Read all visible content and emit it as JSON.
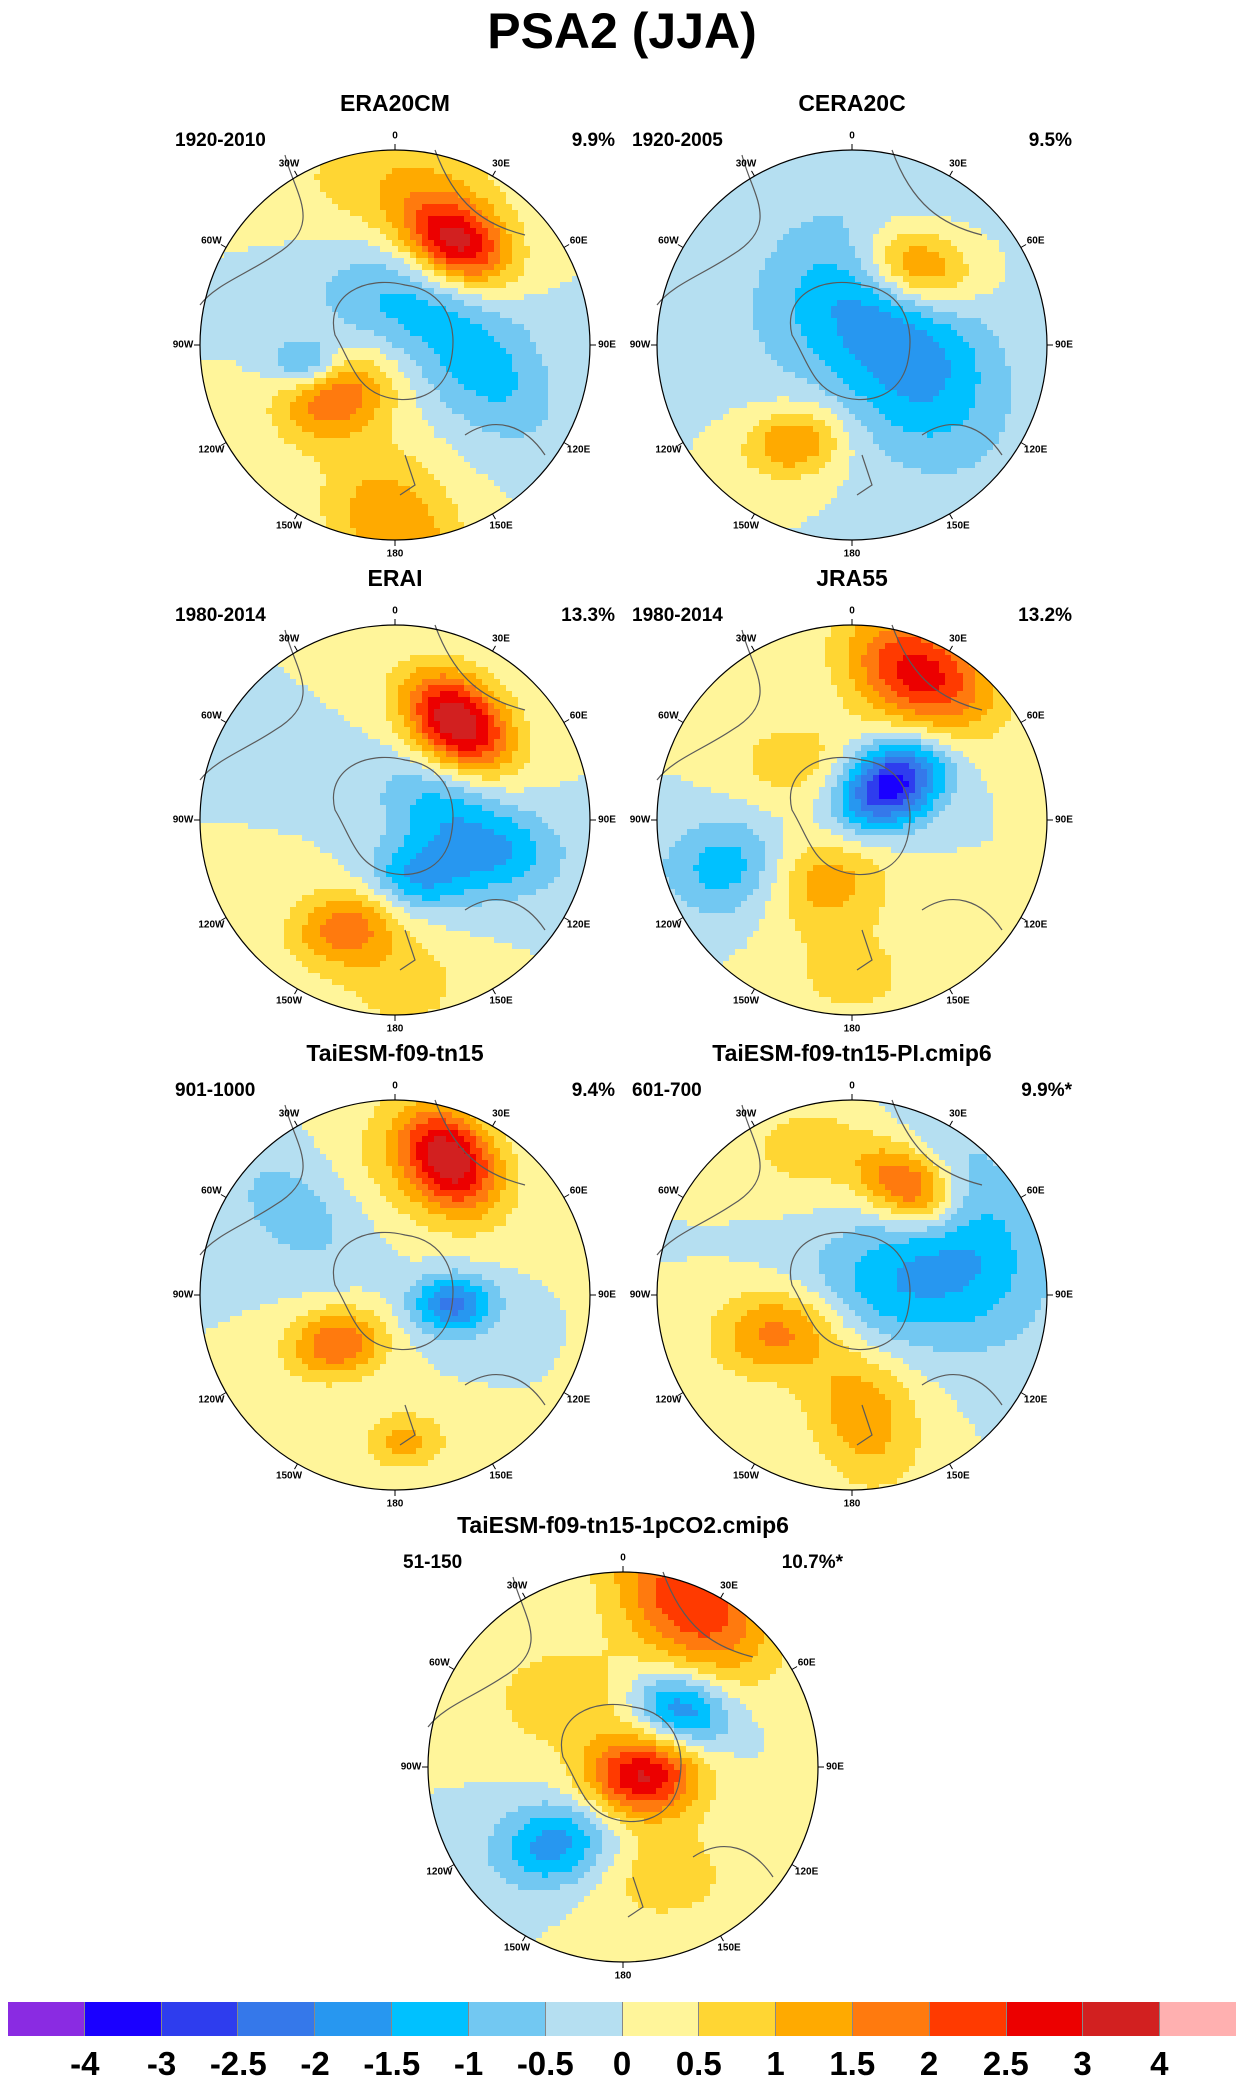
{
  "title": "PSA2 (JJA)",
  "lon_labels": [
    "0",
    "30E",
    "60E",
    "90E",
    "120E",
    "150E",
    "180",
    "150W",
    "120W",
    "90W",
    "60W",
    "30W"
  ],
  "panels": [
    {
      "name": "ERA20CM",
      "period": "1920-2010",
      "variance": "9.9%",
      "blobs": [
        [
          0.32,
          -0.52,
          0.16,
          3.2,
          30
        ],
        [
          -0.3,
          0.25,
          0.17,
          2.0,
          -20
        ],
        [
          0.0,
          0.95,
          0.25,
          1.5,
          60
        ],
        [
          -0.45,
          0.1,
          0.1,
          -1.5,
          0
        ],
        [
          0.5,
          0.18,
          0.22,
          -1.0,
          45
        ],
        [
          0.05,
          -0.25,
          0.28,
          -1.2,
          20
        ],
        [
          0.0,
          -0.8,
          0.3,
          1.0,
          0
        ]
      ]
    },
    {
      "name": "CERA20C",
      "period": "1920-2005",
      "variance": "9.5%",
      "blobs": [
        [
          0.32,
          -0.4,
          0.17,
          2.4,
          20
        ],
        [
          -0.3,
          0.5,
          0.14,
          1.6,
          -10
        ],
        [
          0.3,
          0.05,
          0.32,
          -1.8,
          60
        ],
        [
          -0.1,
          -0.3,
          0.32,
          -0.8,
          -40
        ]
      ]
    },
    {
      "name": "ERAI",
      "period": "1980-2014",
      "variance": "13.3%",
      "blobs": [
        [
          0.32,
          -0.5,
          0.17,
          3.6,
          40
        ],
        [
          -0.25,
          0.55,
          0.16,
          1.8,
          -10
        ],
        [
          0.1,
          0.3,
          0.14,
          -1.5,
          0
        ],
        [
          0.25,
          -0.05,
          0.2,
          -1.2,
          30
        ],
        [
          0.55,
          0.18,
          0.18,
          -1.2,
          0
        ],
        [
          0.05,
          0.85,
          0.18,
          0.8,
          0
        ]
      ]
    },
    {
      "name": "JRA55",
      "period": "1980-2014",
      "variance": "13.2%",
      "blobs": [
        [
          0.2,
          -0.18,
          0.16,
          -3.4,
          -30
        ],
        [
          0.35,
          -0.75,
          0.22,
          2.8,
          30
        ],
        [
          -0.2,
          0.3,
          0.2,
          1.6,
          0
        ],
        [
          -0.58,
          0.25,
          0.2,
          -1.6,
          0
        ],
        [
          -0.3,
          -0.3,
          0.18,
          0.8,
          0
        ],
        [
          0.0,
          0.8,
          0.2,
          0.7,
          0
        ]
      ]
    },
    {
      "name": "TaiESM-f09-tn15",
      "period": "901-1000",
      "variance": "9.4%",
      "blobs": [
        [
          0.28,
          -0.7,
          0.16,
          3.0,
          50
        ],
        [
          0.3,
          0.05,
          0.12,
          -2.2,
          0
        ],
        [
          -0.3,
          0.25,
          0.14,
          2.0,
          -10
        ],
        [
          0.05,
          0.75,
          0.12,
          1.2,
          0
        ],
        [
          -0.45,
          -0.45,
          0.25,
          -1.0,
          30
        ],
        [
          0.0,
          -0.6,
          0.3,
          0.8,
          0
        ]
      ]
    },
    {
      "name": "TaiESM-f09-tn15-PI.cmip6",
      "period": "601-700",
      "variance": "9.9%*",
      "blobs": [
        [
          0.3,
          -0.55,
          0.15,
          2.8,
          30
        ],
        [
          -0.38,
          0.18,
          0.18,
          1.8,
          -10
        ],
        [
          0.05,
          0.6,
          0.22,
          1.4,
          70
        ],
        [
          0.1,
          0.0,
          0.25,
          -1.2,
          0
        ],
        [
          0.55,
          -0.3,
          0.3,
          -1.5,
          60
        ],
        [
          -0.2,
          -0.75,
          0.2,
          0.8,
          0
        ]
      ]
    },
    {
      "name": "TaiESM-f09-tn15-1pCO2.cmip6",
      "period": "51-150",
      "variance": "10.7%*",
      "blobs": [
        [
          0.1,
          0.05,
          0.16,
          3.0,
          0
        ],
        [
          -0.35,
          0.4,
          0.17,
          -1.8,
          -10
        ],
        [
          0.3,
          -0.3,
          0.14,
          -2.0,
          20
        ],
        [
          0.35,
          -0.85,
          0.25,
          2.5,
          40
        ],
        [
          -0.3,
          -0.35,
          0.22,
          0.9,
          0
        ],
        [
          0.2,
          0.55,
          0.22,
          0.8,
          0
        ]
      ]
    }
  ],
  "colorbar": {
    "labels": [
      "-4",
      "-3",
      "-2.5",
      "-2",
      "-1.5",
      "-1",
      "-0.5",
      "0",
      "0.5",
      "1",
      "1.5",
      "2",
      "2.5",
      "3",
      "4"
    ],
    "colors": [
      "#8a2be2",
      "#1a00ff",
      "#2e3dee",
      "#3578ea",
      "#2797f0",
      "#00c1ff",
      "#72c8f2",
      "#b5dff1",
      "#fff59a",
      "#ffd633",
      "#ffaa00",
      "#ff7a0e",
      "#ff3a00",
      "#ec0000",
      "#d22020",
      "#ffb0b0"
    ]
  }
}
